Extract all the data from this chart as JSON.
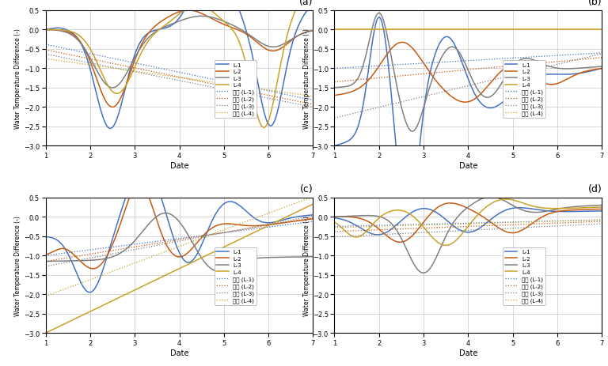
{
  "colors": {
    "L1": "#4472C4",
    "L2": "#C55A11",
    "L3": "#808080",
    "L4": "#C9A227"
  },
  "ylabel": "Water Temperature Difference (-)",
  "xlabel": "Date",
  "ylim": [
    -3,
    0.5
  ],
  "xlim": [
    1,
    7
  ],
  "xticks": [
    1,
    2,
    3,
    4,
    5,
    6,
    7
  ],
  "yticks": [
    -3,
    -2.5,
    -2,
    -1.5,
    -1,
    -0.5,
    0,
    0.5
  ],
  "legend_solid": [
    "L-1",
    "L-2",
    "L-3",
    "L-4"
  ],
  "legend_dotted": [
    "선형 (L-1)",
    "선형 (L-2)",
    "선형 (L-3)",
    "선형 (L-4)"
  ],
  "panel_labels": [
    "(a)",
    "(b)",
    "(c)",
    "(d)"
  ]
}
